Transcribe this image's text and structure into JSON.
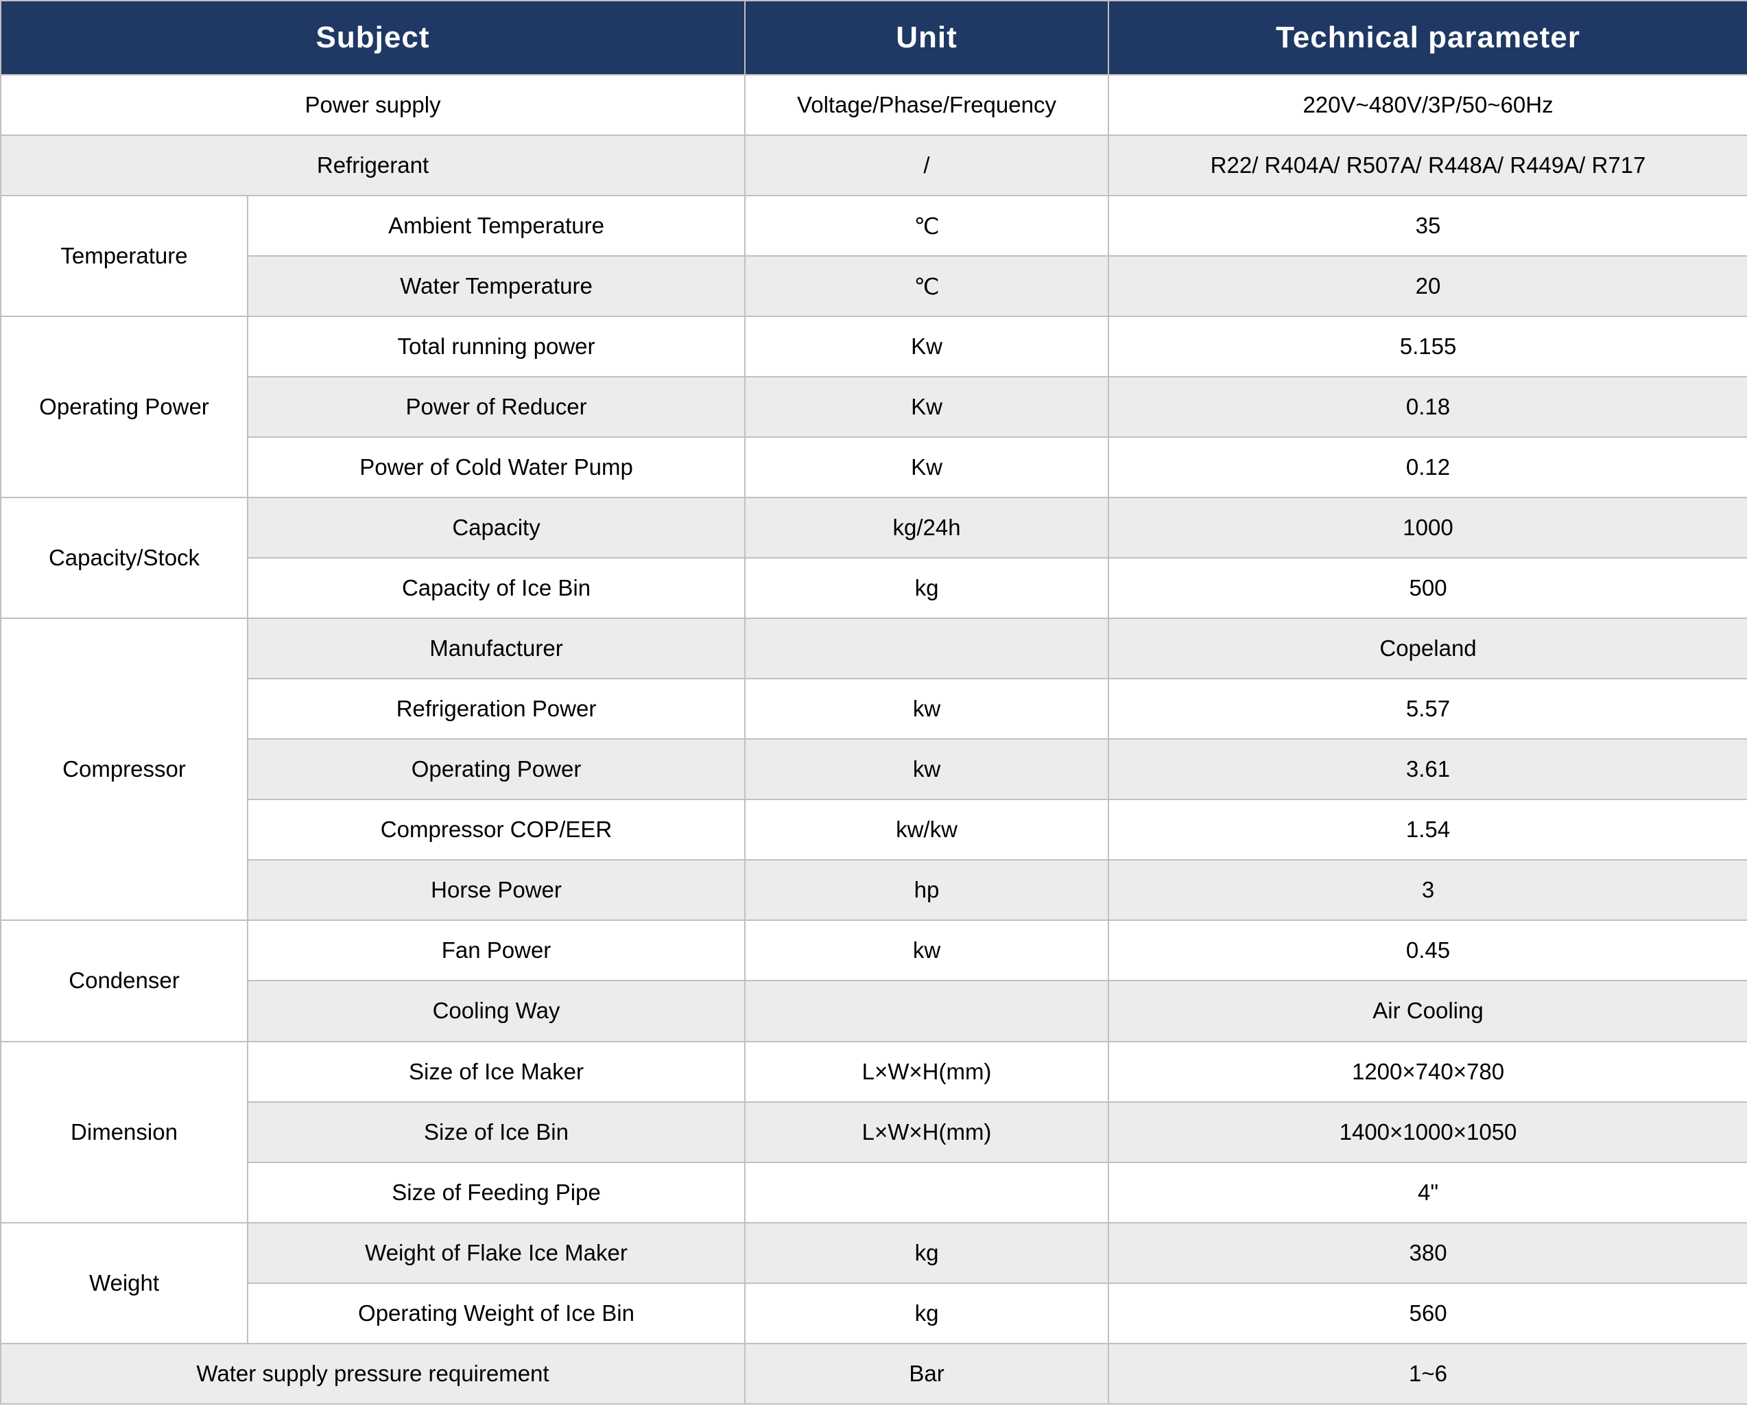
{
  "header": {
    "subject": "Subject",
    "unit": "Unit",
    "parameter": "Technical parameter"
  },
  "colors": {
    "header_bg": "#1f3864",
    "header_text": "#ffffff",
    "row_white": "#ffffff",
    "row_shaded": "#ececec",
    "border": "#c0c0c0",
    "body_text": "#000000"
  },
  "rows": [
    {
      "subject": "Power supply",
      "span_subject": true,
      "unit": "Voltage/Phase/Frequency",
      "value": "220V~480V/3P/50~60Hz",
      "shaded": false
    },
    {
      "subject": "Refrigerant",
      "span_subject": true,
      "unit": "/",
      "value": "R22/ R404A/ R507A/ R448A/ R449A/ R717",
      "shaded": true
    },
    {
      "group": "Temperature",
      "group_rowspan": 2,
      "subject": "Ambient Temperature",
      "unit": "℃",
      "value": "35",
      "shaded": false
    },
    {
      "subject": "Water Temperature",
      "unit": "℃",
      "value": "20",
      "shaded": true
    },
    {
      "group": "Operating Power",
      "group_rowspan": 3,
      "subject": "Total running power",
      "unit": "Kw",
      "value": "5.155",
      "shaded": false
    },
    {
      "subject": "Power of Reducer",
      "unit": "Kw",
      "value": "0.18",
      "shaded": true
    },
    {
      "subject": "Power of Cold Water Pump",
      "unit": "Kw",
      "value": "0.12",
      "shaded": false
    },
    {
      "group": "Capacity/Stock",
      "group_rowspan": 2,
      "subject": "Capacity",
      "unit": "kg/24h",
      "value": "1000",
      "shaded": true
    },
    {
      "subject": "Capacity of Ice Bin",
      "unit": "kg",
      "value": "500",
      "shaded": false
    },
    {
      "group": "Compressor",
      "group_rowspan": 5,
      "subject": "Manufacturer",
      "unit": "",
      "value": "Copeland",
      "shaded": true
    },
    {
      "subject": "Refrigeration Power",
      "unit": "kw",
      "value": "5.57",
      "shaded": false
    },
    {
      "subject": "Operating Power",
      "unit": "kw",
      "value": "3.61",
      "shaded": true
    },
    {
      "subject": "Compressor COP/EER",
      "unit": "kw/kw",
      "value": "1.54",
      "shaded": false
    },
    {
      "subject": "Horse Power",
      "unit": "hp",
      "value": "3",
      "shaded": true
    },
    {
      "group": "Condenser",
      "group_rowspan": 2,
      "subject": "Fan Power",
      "unit": "kw",
      "value": "0.45",
      "shaded": false
    },
    {
      "subject": "Cooling Way",
      "unit": "",
      "value": "Air Cooling",
      "shaded": true
    },
    {
      "group": "Dimension",
      "group_rowspan": 3,
      "subject": "Size of Ice Maker",
      "unit": "L×W×H(mm)",
      "value": "1200×740×780",
      "shaded": false
    },
    {
      "subject": "Size of Ice Bin",
      "unit": "L×W×H(mm)",
      "value": "1400×1000×1050",
      "shaded": true
    },
    {
      "subject": "Size of Feeding Pipe",
      "unit": "",
      "value": "4\"",
      "shaded": false
    },
    {
      "group": "Weight",
      "group_rowspan": 2,
      "subject": "Weight of Flake Ice Maker",
      "unit": "kg",
      "value": "380",
      "shaded": true
    },
    {
      "subject": "Operating Weight of Ice Bin",
      "unit": "kg",
      "value": "560",
      "shaded": false
    },
    {
      "subject": "Water supply pressure requirement",
      "span_subject": true,
      "unit": "Bar",
      "value": "1~6",
      "shaded": true
    }
  ]
}
